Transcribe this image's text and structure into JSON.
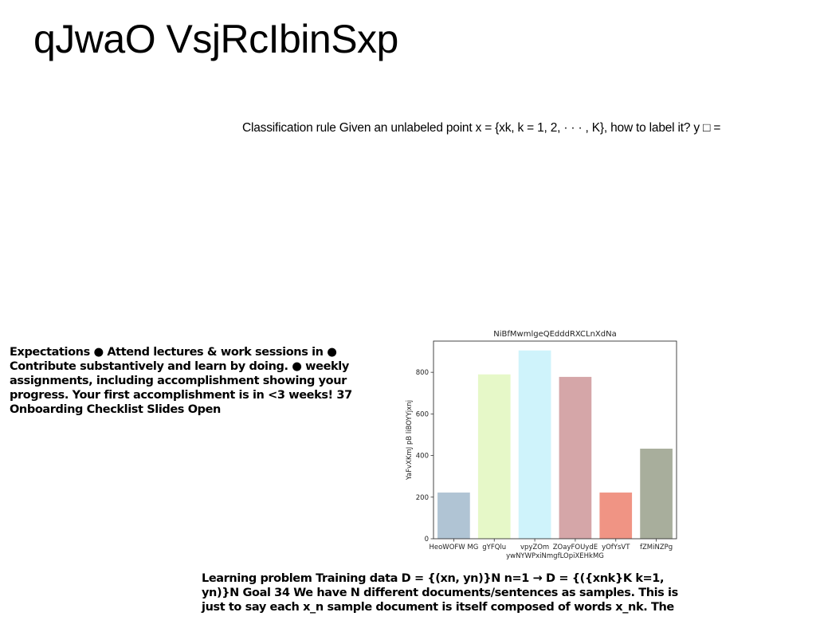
{
  "slide": {
    "title": "qJwaO VsjRcIbinSxp",
    "classification_text": "Classification rule Given an unlabeled point x = {xk, k = 1, 2, · · · , K}, how to label it? y □ =",
    "expectations_text": "Expectations ● Attend lectures & work sessions in ● Contribute substantively and learn by doing. ● weekly assignments, including accomplishment showing your progress. Your first accomplishment is in <3 weeks! 37 Onboarding Checklist Slides Open",
    "learning_text": "Learning problem Training data D = {(xn, yn)}N n=1 → D = {({xnk}K k=1, yn)}N Goal 34 We have N different documents/sentences as samples. This is just to say each x_n sample document is itself composed of words x_nk. The"
  },
  "chart_data": {
    "type": "bar",
    "title": "NiBfMwmlgeQEdddRXCLnXdNa",
    "xlabel": "ywNYWPxiNmgfLOpiXEHkMG",
    "ylabel": "YaFvXKmJ pB liBOYYjxnj",
    "categories": [
      "HeoWOFW MG",
      "gYFQlu",
      "vpyZOm",
      "ZOayFOUydE",
      "yOfYsVT",
      "fZMiNZPg"
    ],
    "values": [
      222,
      790,
      905,
      778,
      222,
      433
    ],
    "colors": [
      "#b0c4d4",
      "#e6f8c8",
      "#cff3fb",
      "#d5a6a8",
      "#f09484",
      "#a8ae9c"
    ],
    "ylim": [
      0,
      950
    ],
    "yticks": [
      0,
      200,
      400,
      600,
      800
    ],
    "grid": false,
    "legend": "none"
  }
}
